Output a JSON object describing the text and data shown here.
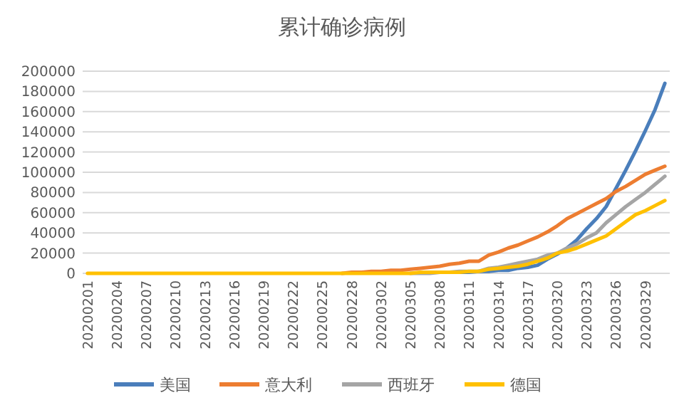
{
  "chart_data": {
    "type": "line",
    "title": "累计确诊病例",
    "categories": [
      "20200201",
      null,
      null,
      "20200204",
      null,
      null,
      "20200207",
      null,
      null,
      "20200210",
      null,
      null,
      "20200213",
      null,
      null,
      "20200216",
      null,
      null,
      "20200219",
      null,
      null,
      "20200222",
      null,
      null,
      "20200225",
      null,
      null,
      "20200228",
      null,
      null,
      "20200302",
      null,
      null,
      "20200305",
      null,
      null,
      "20200308",
      null,
      null,
      "20200311",
      null,
      null,
      "20200314",
      null,
      null,
      "20200317",
      null,
      null,
      "20200320",
      null,
      null,
      "20200323",
      null,
      null,
      "20200326",
      null,
      null,
      "20200329",
      null,
      null
    ],
    "series": [
      {
        "name": "美国",
        "color": "#4a7ebb",
        "values": [
          null,
          null,
          null,
          null,
          null,
          null,
          null,
          null,
          null,
          null,
          null,
          null,
          null,
          null,
          null,
          null,
          null,
          null,
          null,
          null,
          null,
          null,
          null,
          null,
          null,
          null,
          null,
          null,
          null,
          null,
          null,
          null,
          null,
          null,
          null,
          null,
          null,
          null,
          1000,
          1000,
          2000,
          2000,
          3000,
          3000,
          5000,
          6000,
          8000,
          14000,
          19000,
          25000,
          33000,
          44000,
          54000,
          66000,
          84000,
          102000,
          121000,
          141000,
          162000,
          188000
        ]
      },
      {
        "name": "意大利",
        "color": "#ed7d31",
        "values": [
          null,
          null,
          null,
          null,
          null,
          null,
          null,
          null,
          null,
          null,
          null,
          null,
          null,
          null,
          null,
          null,
          null,
          null,
          null,
          null,
          null,
          null,
          null,
          null,
          null,
          null,
          0,
          1000,
          1000,
          2000,
          2000,
          3000,
          3000,
          4000,
          5000,
          6000,
          7000,
          9000,
          10000,
          12000,
          12000,
          18000,
          21000,
          25000,
          28000,
          32000,
          36000,
          41000,
          47000,
          54000,
          59000,
          64000,
          69000,
          74000,
          81000,
          86000,
          92000,
          98000,
          102000,
          106000
        ]
      },
      {
        "name": "西班牙",
        "color": "#a5a5a5",
        "values": [
          null,
          null,
          null,
          null,
          null,
          null,
          null,
          null,
          null,
          null,
          null,
          null,
          null,
          null,
          null,
          null,
          null,
          null,
          null,
          null,
          null,
          null,
          null,
          null,
          null,
          null,
          null,
          null,
          null,
          null,
          null,
          null,
          null,
          0,
          0,
          0,
          1000,
          1000,
          2000,
          2000,
          2000,
          5000,
          6000,
          8000,
          10000,
          12000,
          14000,
          18000,
          20000,
          25000,
          29000,
          35000,
          40000,
          50000,
          58000,
          66000,
          73000,
          80000,
          88000,
          96000
        ]
      },
      {
        "name": "德国",
        "color": "#ffc000",
        "values": [
          0,
          0,
          0,
          0,
          0,
          0,
          0,
          0,
          0,
          0,
          0,
          0,
          0,
          0,
          0,
          0,
          0,
          0,
          0,
          0,
          0,
          0,
          0,
          0,
          0,
          0,
          0,
          0,
          0,
          0,
          0,
          0,
          0,
          0,
          1000,
          1000,
          1000,
          1000,
          1000,
          2000,
          2000,
          4000,
          5000,
          6000,
          7000,
          9000,
          12000,
          15000,
          20000,
          22000,
          25000,
          29000,
          33000,
          37000,
          44000,
          51000,
          58000,
          62000,
          67000,
          72000
        ]
      }
    ],
    "ylim": [
      0,
      200000
    ],
    "yticks": [
      0,
      20000,
      40000,
      60000,
      80000,
      100000,
      120000,
      140000,
      160000,
      180000,
      200000
    ],
    "grid": "y",
    "legend": "bottom",
    "marker": "none",
    "line_style": "solid"
  }
}
